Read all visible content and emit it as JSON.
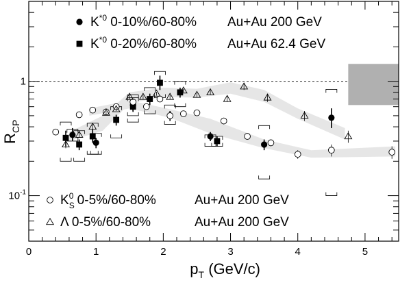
{
  "chart_data": {
    "type": "scatter",
    "xlabel": {
      "main": "p",
      "sub": "T",
      "rest": " (GeV/c)"
    },
    "ylabel": {
      "main": "R",
      "sub": "CP"
    },
    "xlim": [
      0,
      5.5
    ],
    "ylim": [
      0.04,
      5.0
    ],
    "yscale": "log",
    "x_ticks": [
      "0",
      "1",
      "2",
      "3",
      "4",
      "5"
    ],
    "y_ticks": [
      {
        "value": 1,
        "label": "1"
      },
      {
        "value": 0.1,
        "label": "10",
        "sup": "-1"
      }
    ],
    "reference_line": {
      "y": 1,
      "style": "dashed"
    },
    "norm_box": {
      "x": [
        4.75,
        5.5
      ],
      "y": [
        0.62,
        1.42
      ],
      "color": "#b0b0b0"
    },
    "legend_top": [
      {
        "marker": "filled-circle",
        "particle": "K",
        "sup": "*0",
        "centrality": " 0-10%/60-80%",
        "system": "Au+Au 200 GeV"
      },
      {
        "marker": "filled-square",
        "particle": "K",
        "sup": "*0",
        "centrality": " 0-20%/60-80%",
        "system": "Au+Au 62.4 GeV"
      }
    ],
    "legend_bottom": [
      {
        "marker": "open-circle",
        "particle": "K",
        "sub": "S",
        "sup": "0",
        "centrality": " 0-5%/60-80%",
        "system": "Au+Au 200 GeV"
      },
      {
        "marker": "open-triangle",
        "particle": "Λ",
        "centrality": "  0-5%/60-80%",
        "system": "Au+Au 200 GeV"
      }
    ],
    "bands": [
      {
        "name": "K0S",
        "color": "#e6e6e6",
        "points": [
          [
            0.9,
            0.5,
            0.58
          ],
          [
            1.5,
            0.58,
            0.68
          ],
          [
            2.1,
            0.48,
            0.57
          ],
          [
            2.7,
            0.35,
            0.47
          ],
          [
            3.5,
            0.26,
            0.31
          ],
          [
            4.2,
            0.215,
            0.25
          ],
          [
            5.45,
            0.22,
            0.27
          ]
        ]
      },
      {
        "name": "Lambda",
        "color": "#e6e6e6",
        "points": [
          [
            0.6,
            0.3,
            0.36
          ],
          [
            1.1,
            0.37,
            0.5
          ],
          [
            1.5,
            0.64,
            0.8
          ],
          [
            2.0,
            0.73,
            0.88
          ],
          [
            2.5,
            0.72,
            0.86
          ],
          [
            3.0,
            0.78,
            0.98
          ],
          [
            3.5,
            0.66,
            0.84
          ],
          [
            4.0,
            0.47,
            0.58
          ],
          [
            4.7,
            0.31,
            0.39
          ]
        ]
      }
    ],
    "series": [
      {
        "name": "K*0 0-10%/60-80% Au+Au 200 GeV",
        "marker": "filled-circle",
        "points": [
          {
            "x": 0.65,
            "y": 0.34,
            "err": [
              0.3,
              0.39
            ],
            "sys": [
              0.3,
              0.38
            ]
          },
          {
            "x": 1.0,
            "y": 0.29,
            "err": [
              0.26,
              0.32
            ],
            "sys": [
              0.23,
              0.35
            ]
          },
          {
            "x": 1.55,
            "y": 0.62,
            "err": [
              0.55,
              0.69
            ],
            "sys": [
              0.5,
              0.72
            ]
          },
          {
            "x": 2.1,
            "y": 0.5,
            "err": [
              0.45,
              0.55
            ],
            "sys": [
              0.42,
              0.62
            ]
          },
          {
            "x": 2.7,
            "y": 0.33,
            "err": [
              0.3,
              0.36
            ],
            "sys": [
              0.27,
              0.34
            ]
          },
          {
            "x": 3.5,
            "y": 0.28,
            "err": [
              0.25,
              0.31
            ],
            "sys": [
              0.14,
              0.41
            ]
          },
          {
            "x": 4.5,
            "y": 0.48,
            "err": [
              0.39,
              0.58
            ],
            "sys": [
              0.1,
              0.85
            ]
          }
        ]
      },
      {
        "name": "K*0 0-20%/60-80% Au+Au 62.4 GeV",
        "marker": "filled-square",
        "points": [
          {
            "x": 0.55,
            "y": 0.32,
            "err": [
              0.27,
              0.37
            ],
            "sys": [
              0.2,
              0.44
            ]
          },
          {
            "x": 0.75,
            "y": 0.28,
            "err": [
              0.25,
              0.31
            ],
            "sys": [
              0.2,
              0.37
            ]
          },
          {
            "x": 0.95,
            "y": 0.33,
            "err": [
              0.29,
              0.38
            ],
            "sys": [
              0.23,
              0.43
            ]
          },
          {
            "x": 1.3,
            "y": 0.46,
            "err": [
              0.41,
              0.51
            ],
            "sys": [
              0.32,
              0.6
            ]
          },
          {
            "x": 1.55,
            "y": 0.6,
            "err": [
              0.54,
              0.66
            ],
            "sys": [
              0.44,
              0.76
            ]
          },
          {
            "x": 1.8,
            "y": 0.7,
            "err": [
              0.62,
              0.78
            ],
            "sys": [
              0.52,
              0.88
            ]
          },
          {
            "x": 1.95,
            "y": 0.97,
            "err": [
              0.84,
              1.12
            ],
            "sys": [
              0.72,
              1.22
            ]
          },
          {
            "x": 2.25,
            "y": 0.8,
            "err": [
              0.72,
              0.88
            ],
            "sys": [
              0.6,
              1.0
            ]
          },
          {
            "x": 2.8,
            "y": 0.3,
            "err": [
              0.27,
              0.33
            ],
            "sys": [
              0.27,
              0.33
            ]
          }
        ]
      },
      {
        "name": "K0S 0-5%/60-80% Au+Au 200 GeV",
        "marker": "open-circle",
        "points": [
          {
            "x": 0.4,
            "y": 0.36,
            "err": [
              0.34,
              0.38
            ]
          },
          {
            "x": 0.75,
            "y": 0.51,
            "err": [
              0.49,
              0.53
            ]
          },
          {
            "x": 0.95,
            "y": 0.56,
            "err": [
              0.54,
              0.58
            ]
          },
          {
            "x": 1.15,
            "y": 0.54,
            "err": [
              0.52,
              0.56
            ]
          },
          {
            "x": 1.3,
            "y": 0.6,
            "err": [
              0.58,
              0.62
            ]
          },
          {
            "x": 1.55,
            "y": 0.66,
            "err": [
              0.63,
              0.69
            ]
          },
          {
            "x": 1.75,
            "y": 0.6,
            "err": [
              0.57,
              0.63
            ]
          },
          {
            "x": 1.95,
            "y": 0.7,
            "err": [
              0.67,
              0.73
            ]
          },
          {
            "x": 2.1,
            "y": 0.5,
            "err": [
              0.48,
              0.52
            ]
          },
          {
            "x": 2.3,
            "y": 0.52,
            "err": [
              0.5,
              0.54
            ]
          },
          {
            "x": 2.5,
            "y": 0.53,
            "err": [
              0.51,
              0.55
            ]
          },
          {
            "x": 2.9,
            "y": 0.45,
            "err": [
              0.42,
              0.48
            ]
          },
          {
            "x": 3.25,
            "y": 0.33,
            "err": [
              0.31,
              0.35
            ]
          },
          {
            "x": 3.6,
            "y": 0.29,
            "err": [
              0.27,
              0.31
            ]
          },
          {
            "x": 4.0,
            "y": 0.23,
            "err": [
              0.21,
              0.25
            ]
          },
          {
            "x": 4.5,
            "y": 0.25,
            "err": [
              0.22,
              0.28
            ]
          },
          {
            "x": 5.4,
            "y": 0.24,
            "err": [
              0.21,
              0.27
            ]
          }
        ]
      },
      {
        "name": "Lambda 0-5%/60-80% Au+Au 200 GeV",
        "marker": "open-triangle",
        "points": [
          {
            "x": 0.55,
            "y": 0.28,
            "err": [
              0.26,
              0.3
            ]
          },
          {
            "x": 0.75,
            "y": 0.34,
            "err": [
              0.32,
              0.36
            ]
          },
          {
            "x": 0.95,
            "y": 0.4,
            "err": [
              0.38,
              0.42
            ]
          },
          {
            "x": 1.15,
            "y": 0.53,
            "err": [
              0.51,
              0.55
            ]
          },
          {
            "x": 1.3,
            "y": 0.57,
            "err": [
              0.55,
              0.59
            ]
          },
          {
            "x": 1.5,
            "y": 0.73,
            "err": [
              0.7,
              0.76
            ]
          },
          {
            "x": 1.7,
            "y": 0.73,
            "err": [
              0.7,
              0.76
            ]
          },
          {
            "x": 1.9,
            "y": 0.78,
            "err": [
              0.75,
              0.81
            ]
          },
          {
            "x": 2.1,
            "y": 0.73,
            "err": [
              0.7,
              0.76
            ]
          },
          {
            "x": 2.3,
            "y": 0.83,
            "err": [
              0.8,
              0.86
            ]
          },
          {
            "x": 2.5,
            "y": 0.76,
            "err": [
              0.73,
              0.79
            ]
          },
          {
            "x": 2.7,
            "y": 0.8,
            "err": [
              0.76,
              0.84
            ]
          },
          {
            "x": 2.95,
            "y": 0.7,
            "err": [
              0.66,
              0.74
            ]
          },
          {
            "x": 3.2,
            "y": 0.9,
            "err": [
              0.84,
              0.96
            ]
          },
          {
            "x": 3.55,
            "y": 0.72,
            "err": [
              0.66,
              0.78
            ]
          },
          {
            "x": 4.1,
            "y": 0.5,
            "err": [
              0.45,
              0.55
            ]
          },
          {
            "x": 4.75,
            "y": 0.33,
            "err": [
              0.29,
              0.37
            ]
          }
        ]
      }
    ]
  }
}
